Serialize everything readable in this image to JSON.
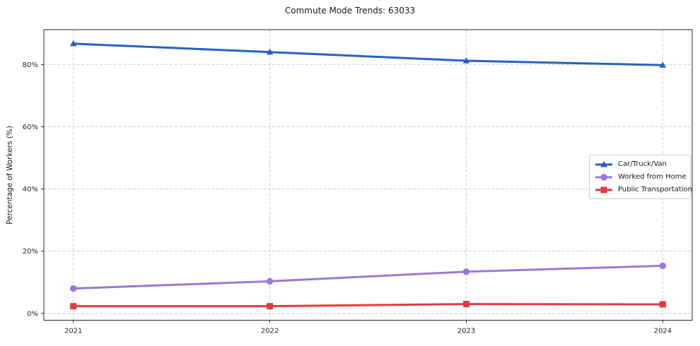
{
  "title": "Commute Mode Trends: 63033",
  "chart_data": {
    "type": "line",
    "title": "Commute Mode Trends: 63033",
    "xlabel": "",
    "ylabel": "Percentage of Workers (%)",
    "categories": [
      2021,
      2022,
      2023,
      2024
    ],
    "x_tick_labels": [
      "2021",
      "2022",
      "2023",
      "2024"
    ],
    "y_ticks": [
      0,
      20,
      40,
      60,
      80
    ],
    "y_tick_labels": [
      "0%",
      "20%",
      "40%",
      "60%",
      "80%"
    ],
    "xlim": [
      2020.85,
      2024.15
    ],
    "ylim": [
      -2.2,
      91.2
    ],
    "grid": true,
    "grid_style": "dashed",
    "legend_position": "right",
    "series": [
      {
        "name": "Car/Truck/Van",
        "color": "#2563c2",
        "marker": "triangle",
        "values": [
          86.7,
          84.0,
          81.2,
          79.8
        ]
      },
      {
        "name": "Worked from Home",
        "color": "#9a79d8",
        "marker": "circle",
        "values": [
          8.0,
          10.3,
          13.4,
          15.3
        ]
      },
      {
        "name": "Public Transportation",
        "color": "#e23b41",
        "marker": "square",
        "values": [
          2.3,
          2.3,
          3.0,
          2.9
        ]
      }
    ]
  },
  "colors": {
    "background": "#ffffff",
    "grid": "#cccccc",
    "spine": "#262626",
    "tick_label": "#262626",
    "title_text": "#1a1a1a",
    "legend_border": "#cccccc"
  }
}
